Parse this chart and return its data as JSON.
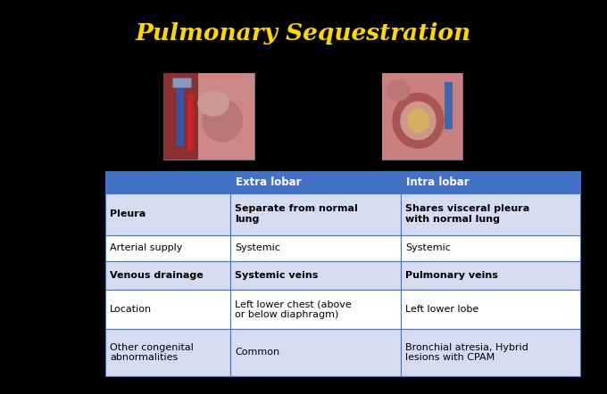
{
  "title": "Pulmonary Sequestration",
  "title_color": "#FFD700",
  "background_color": "#000000",
  "table_header_bg": "#4472C4",
  "table_header_text": "#FFFFFF",
  "table_row_bg_dark": "#D6DCF0",
  "table_row_bg_light": "#FFFFFF",
  "table_border_color": "#4472C4",
  "table_text_color": "#000000",
  "col_headers": [
    "",
    "Extra lobar",
    "Intra lobar"
  ],
  "rows": [
    [
      "Pleura",
      "Separate from normal\nlung",
      "Shares visceral pleura\nwith normal lung"
    ],
    [
      "Arterial supply",
      "Systemic",
      "Systemic"
    ],
    [
      "Venous drainage",
      "Systemic veins",
      "Pulmonary veins"
    ],
    [
      "Location",
      "Left lower chest (above\nor below diaphragm)",
      "Left lower lobe"
    ],
    [
      "Other congenital\nabnormalities",
      "Common",
      "Bronchial atresia, Hybrid\nlesions with CPAM"
    ]
  ],
  "bold_rows": [
    0,
    2
  ],
  "fig_width": 6.8,
  "fig_height": 4.42,
  "img1_color": "#C07070",
  "img2_color": "#C07070"
}
